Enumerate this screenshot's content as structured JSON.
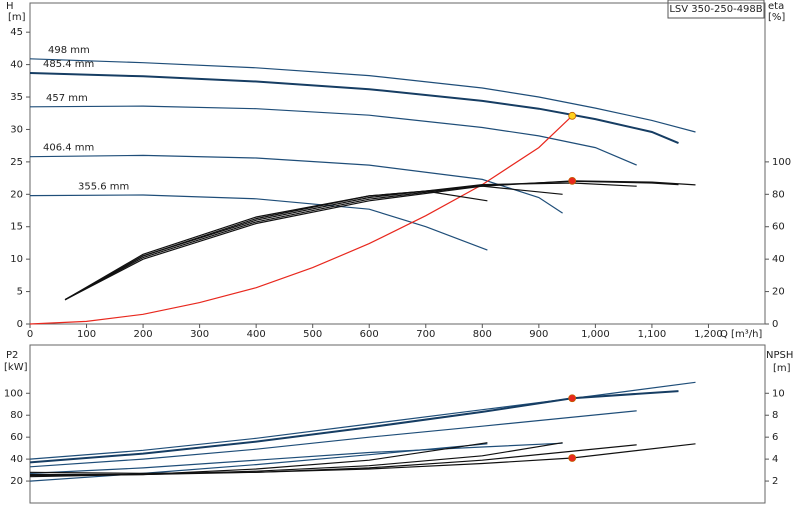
{
  "chart_data": [
    {
      "type": "line",
      "title": "LSV 350-250-498B",
      "x_label": "Q [m³/h]",
      "y_label": "H",
      "y_unit": "[m]",
      "y2_label": "eta",
      "y2_unit": "[%]",
      "xlim": [
        0,
        1300
      ],
      "xticks": [
        0,
        100,
        200,
        300,
        400,
        500,
        600,
        700,
        800,
        900,
        {
          "value": 1000,
          "label": "1,000"
        },
        {
          "value": 1100,
          "label": "1,100"
        },
        {
          "value": 1200,
          "label": "1,200"
        }
      ],
      "ylim": [
        0,
        49.5
      ],
      "yticks": [
        0,
        5,
        10,
        15,
        20,
        25,
        30,
        35,
        40,
        45
      ],
      "y2lim": [
        0,
        198
      ],
      "y2ticks": [
        0,
        20,
        40,
        60,
        80,
        100
      ],
      "series": [
        {
          "name": "498 mm",
          "color": "#1f4e79",
          "x": [
            0,
            200,
            400,
            600,
            800,
            900,
            1000,
            1100,
            1177
          ],
          "values": [
            40.9,
            40.3,
            39.5,
            38.3,
            36.4,
            35,
            33.3,
            31.4,
            29.6
          ]
        },
        {
          "name": "485.4 mm",
          "color": "#163d63",
          "x": [
            0,
            200,
            400,
            600,
            800,
            900,
            1000,
            1100,
            1147
          ],
          "values": [
            38.7,
            38.2,
            37.4,
            36.2,
            34.4,
            33.2,
            31.6,
            29.6,
            27.9
          ]
        },
        {
          "name": "457 mm",
          "color": "#1f4e79",
          "x": [
            0,
            200,
            400,
            600,
            800,
            900,
            1000,
            1073
          ],
          "values": [
            33.5,
            33.6,
            33.2,
            32.2,
            30.3,
            29,
            27.2,
            24.5
          ]
        },
        {
          "name": "406.4 mm",
          "color": "#1f4e79",
          "x": [
            0,
            200,
            400,
            600,
            800,
            900,
            942
          ],
          "values": [
            25.8,
            26,
            25.6,
            24.5,
            22.3,
            19.5,
            17.1
          ]
        },
        {
          "name": "355.6 mm",
          "color": "#1f4e79",
          "x": [
            0,
            200,
            400,
            600,
            700,
            809
          ],
          "values": [
            19.8,
            19.9,
            19.3,
            17.7,
            15,
            11.4
          ]
        },
        {
          "color": "#e8281e",
          "x": [
            0,
            100,
            200,
            300,
            400,
            500,
            600,
            700,
            800,
            900,
            959
          ],
          "values": [
            0,
            0.4,
            1.5,
            3.3,
            5.6,
            8.7,
            12.4,
            16.7,
            21.5,
            27.2,
            32.1
          ]
        },
        {
          "color": "#111111",
          "axis": "y2",
          "x": [
            62,
            200,
            400,
            600,
            800,
            960,
            1100,
            1177
          ],
          "values": [
            15,
            40,
            62,
            76,
            85,
            88.3,
            87.5,
            85.8
          ]
        },
        {
          "color": "#111111",
          "axis": "y2",
          "x": [
            62,
            200,
            400,
            600,
            800,
            960,
            1100,
            1147
          ],
          "values": [
            15,
            41,
            63,
            77,
            85.5,
            88,
            87,
            86
          ]
        },
        {
          "color": "#111111",
          "axis": "y2",
          "x": [
            62,
            200,
            400,
            600,
            800,
            960,
            1073
          ],
          "values": [
            15,
            42,
            64,
            78,
            86,
            87,
            85
          ]
        },
        {
          "color": "#111111",
          "axis": "y2",
          "x": [
            62,
            200,
            400,
            600,
            800,
            942
          ],
          "values": [
            15,
            42,
            65,
            79,
            85,
            80
          ]
        },
        {
          "color": "#111111",
          "axis": "y2",
          "x": [
            62,
            200,
            400,
            600,
            700,
            809
          ],
          "values": [
            15,
            43,
            66,
            79,
            82,
            76
          ]
        }
      ],
      "points": [
        {
          "x": 959,
          "y": 32.1,
          "color": "#ffd21f"
        },
        {
          "x": 959,
          "y": 88.3,
          "axis": "y2",
          "color": "#e8281e"
        }
      ]
    },
    {
      "type": "line",
      "y_label": "P2",
      "y_unit": "[kW]",
      "y2_label": "NPSH",
      "y2_unit": "[m]",
      "xlim": [
        0,
        1300
      ],
      "ylim": [
        0,
        144
      ],
      "yticks": [
        20,
        40,
        60,
        80,
        100
      ],
      "y2lim": [
        0,
        14.4
      ],
      "y2ticks": [
        2,
        4,
        6,
        8,
        10
      ],
      "series": [
        {
          "color": "#1f4e79",
          "x": [
            0,
            200,
            400,
            600,
            800,
            1000,
            1177
          ],
          "values": [
            40,
            48,
            59,
            72,
            85,
            98,
            110
          ]
        },
        {
          "color": "#163d63",
          "x": [
            0,
            200,
            400,
            600,
            800,
            959,
            1147
          ],
          "values": [
            37,
            45,
            56,
            69,
            83,
            95.5,
            102
          ]
        },
        {
          "color": "#1f4e79",
          "x": [
            0,
            200,
            400,
            600,
            800,
            1073
          ],
          "values": [
            33,
            40,
            49,
            60,
            70,
            84
          ]
        },
        {
          "color": "#1f4e79",
          "x": [
            0,
            200,
            400,
            600,
            800,
            942
          ],
          "values": [
            27,
            32,
            39,
            46,
            51,
            54.5
          ]
        },
        {
          "color": "#1f4e79",
          "x": [
            0,
            200,
            400,
            600,
            809
          ],
          "values": [
            20,
            27,
            35,
            44,
            54
          ]
        },
        {
          "color": "#111111",
          "axis": "y2",
          "x": [
            0,
            200,
            400,
            600,
            800,
            959,
            1177
          ],
          "values": [
            2.8,
            2.7,
            2.8,
            3.1,
            3.6,
            4.1,
            5.4
          ]
        },
        {
          "color": "#111111",
          "axis": "y2",
          "x": [
            0,
            200,
            400,
            600,
            800,
            1073
          ],
          "values": [
            2.6,
            2.6,
            2.8,
            3.2,
            3.9,
            5.3
          ]
        },
        {
          "color": "#111111",
          "axis": "y2",
          "x": [
            0,
            200,
            400,
            600,
            800,
            942
          ],
          "values": [
            2.5,
            2.6,
            2.9,
            3.4,
            4.3,
            5.5
          ]
        },
        {
          "color": "#111111",
          "axis": "y2",
          "x": [
            0,
            200,
            400,
            600,
            809
          ],
          "values": [
            2.4,
            2.6,
            3.1,
            3.9,
            5.5
          ]
        }
      ],
      "points": [
        {
          "x": 959,
          "y": 95.5,
          "color": "#e8281e"
        },
        {
          "x": 959,
          "y": 4.1,
          "axis": "y2",
          "color": "#e8281e"
        }
      ]
    }
  ]
}
